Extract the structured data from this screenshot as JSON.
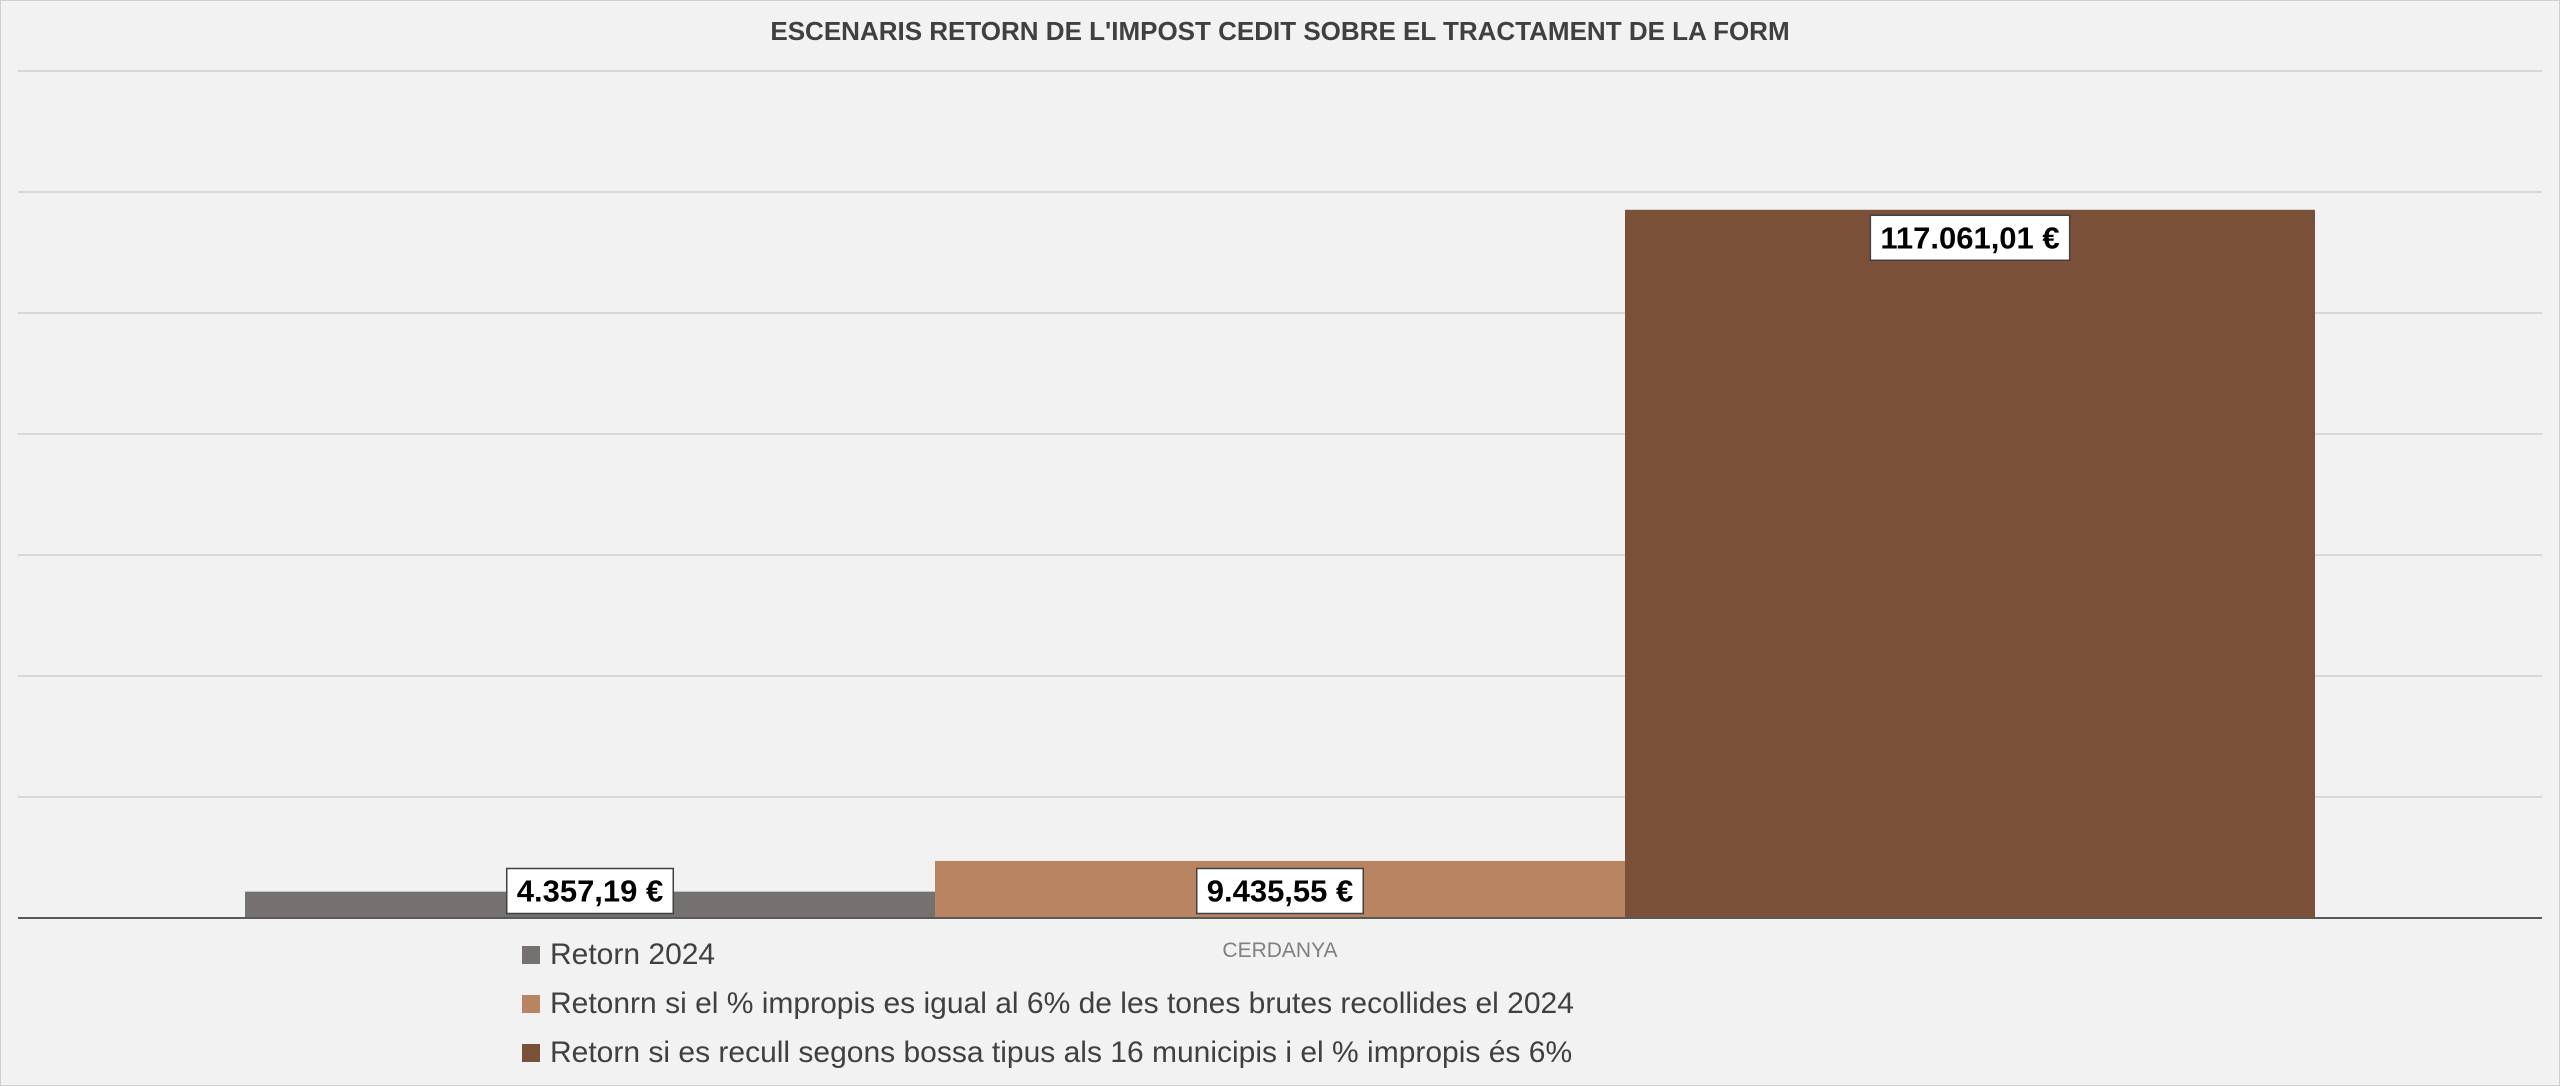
{
  "chart_data": {
    "type": "bar",
    "title": "ESCENARIS RETORN DE L'IMPOST CEDIT SOBRE EL TRACTAMENT DE LA FORM",
    "categories": [
      "CERDANYA"
    ],
    "series": [
      {
        "name": "Retorn 2024",
        "values": [
          4357.19
        ],
        "label": "4.357,19 €",
        "color": "#767171"
      },
      {
        "name": "Retonrn si el % impropis es igual al 6% de les tones brutes recollides el 2024",
        "values": [
          9435.55
        ],
        "label": "9.435,55 €",
        "color": "#b98462"
      },
      {
        "name": "Retorn si es recull segons bossa tipus als 16 municipis i el % impropis és 6%",
        "values": [
          117061.01
        ],
        "label": "117.061,01 €",
        "color": "#7b5039"
      }
    ],
    "xlabel": "",
    "ylabel": "",
    "ylim": [
      0,
      140000
    ],
    "gridlines": true,
    "y_tick_labels_visible": false,
    "legend_position": "bottom"
  }
}
